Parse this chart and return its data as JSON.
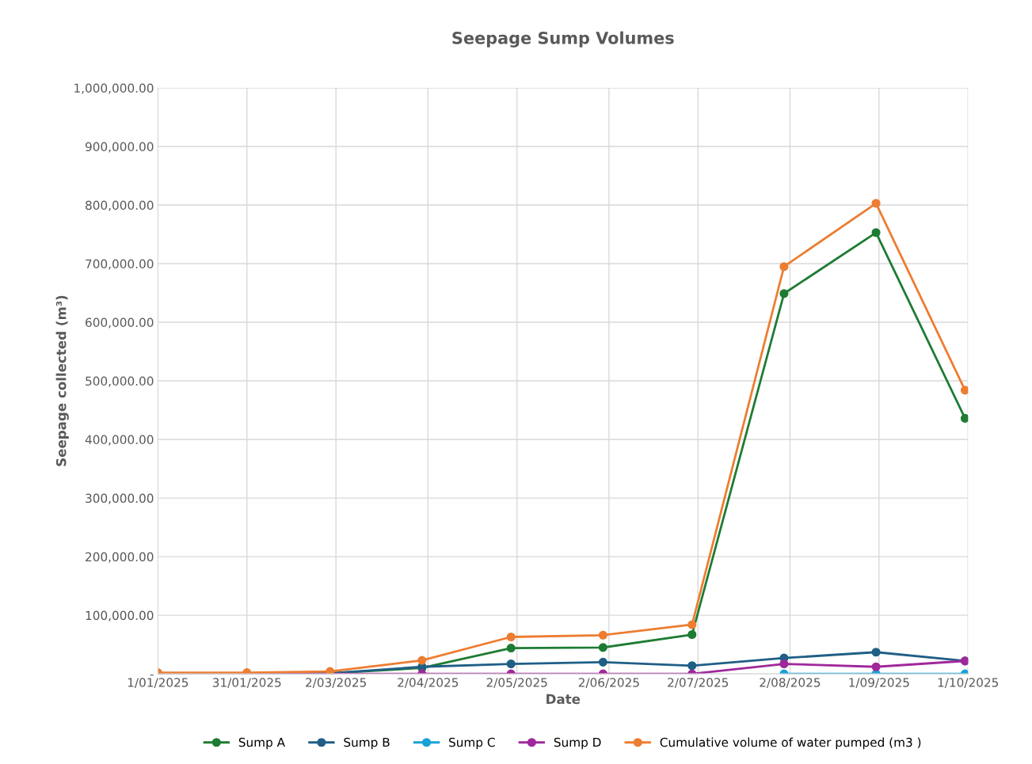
{
  "chart_data": {
    "type": "line",
    "title": "Seepage Sump Volumes",
    "xlabel": "Date",
    "ylabel": "Seepage collected (m³)",
    "x": [
      "2025-01-01",
      "2025-01-31",
      "2025-02-28",
      "2025-03-31",
      "2025-04-30",
      "2025-05-31",
      "2025-06-30",
      "2025-07-31",
      "2025-08-31",
      "2025-09-30"
    ],
    "series": [
      {
        "name": "Sump A",
        "color": "#1e7b34",
        "values": [
          0,
          0,
          1000,
          10000,
          44000,
          45000,
          67000,
          649000,
          753000,
          436000
        ]
      },
      {
        "name": "Sump B",
        "color": "#1f5f86",
        "values": [
          0,
          0,
          1000,
          12000,
          17000,
          20000,
          14000,
          27000,
          37000,
          22000
        ]
      },
      {
        "name": "Sump C",
        "color": "#17a2d8",
        "values": [
          null,
          null,
          null,
          null,
          null,
          null,
          null,
          0,
          0,
          0
        ]
      },
      {
        "name": "Sump D",
        "color": "#a0289b",
        "values": [
          0,
          0,
          0,
          0,
          0,
          0,
          0,
          17000,
          12000,
          22000
        ]
      },
      {
        "name": "Cumulative volume of water pumped (m3 )",
        "color": "#ed7d31",
        "values": [
          2000,
          2000,
          4000,
          23000,
          63000,
          66000,
          84000,
          695000,
          803000,
          484000
        ]
      }
    ],
    "xlim": [
      "2025-01-01",
      "2025-10-01"
    ],
    "xticks": [
      {
        "value": "2025-01-01",
        "label": "1/01/2025"
      },
      {
        "value": "2025-01-31",
        "label": "31/01/2025"
      },
      {
        "value": "2025-03-02",
        "label": "2/03/2025"
      },
      {
        "value": "2025-04-02",
        "label": "2/04/2025"
      },
      {
        "value": "2025-05-02",
        "label": "2/05/2025"
      },
      {
        "value": "2025-06-02",
        "label": "2/06/2025"
      },
      {
        "value": "2025-07-02",
        "label": "2/07/2025"
      },
      {
        "value": "2025-08-02",
        "label": "2/08/2025"
      },
      {
        "value": "2025-09-01",
        "label": "1/09/2025"
      },
      {
        "value": "2025-10-01",
        "label": "1/10/2025"
      }
    ],
    "ylim": [
      0,
      1000000
    ],
    "yticks": [
      {
        "value": 0,
        "label": "-"
      },
      {
        "value": 100000,
        "label": "100,000.00"
      },
      {
        "value": 200000,
        "label": "200,000.00"
      },
      {
        "value": 300000,
        "label": "300,000.00"
      },
      {
        "value": 400000,
        "label": "400,000.00"
      },
      {
        "value": 500000,
        "label": "500,000.00"
      },
      {
        "value": 600000,
        "label": "600,000.00"
      },
      {
        "value": 700000,
        "label": "700,000.00"
      },
      {
        "value": 800000,
        "label": "800,000.00"
      },
      {
        "value": 900000,
        "label": "900,000.00"
      },
      {
        "value": 1000000,
        "label": "1,000,000.00"
      }
    ],
    "grid": true,
    "legend": "bottom",
    "marker": "circle",
    "line_style": "solid"
  }
}
